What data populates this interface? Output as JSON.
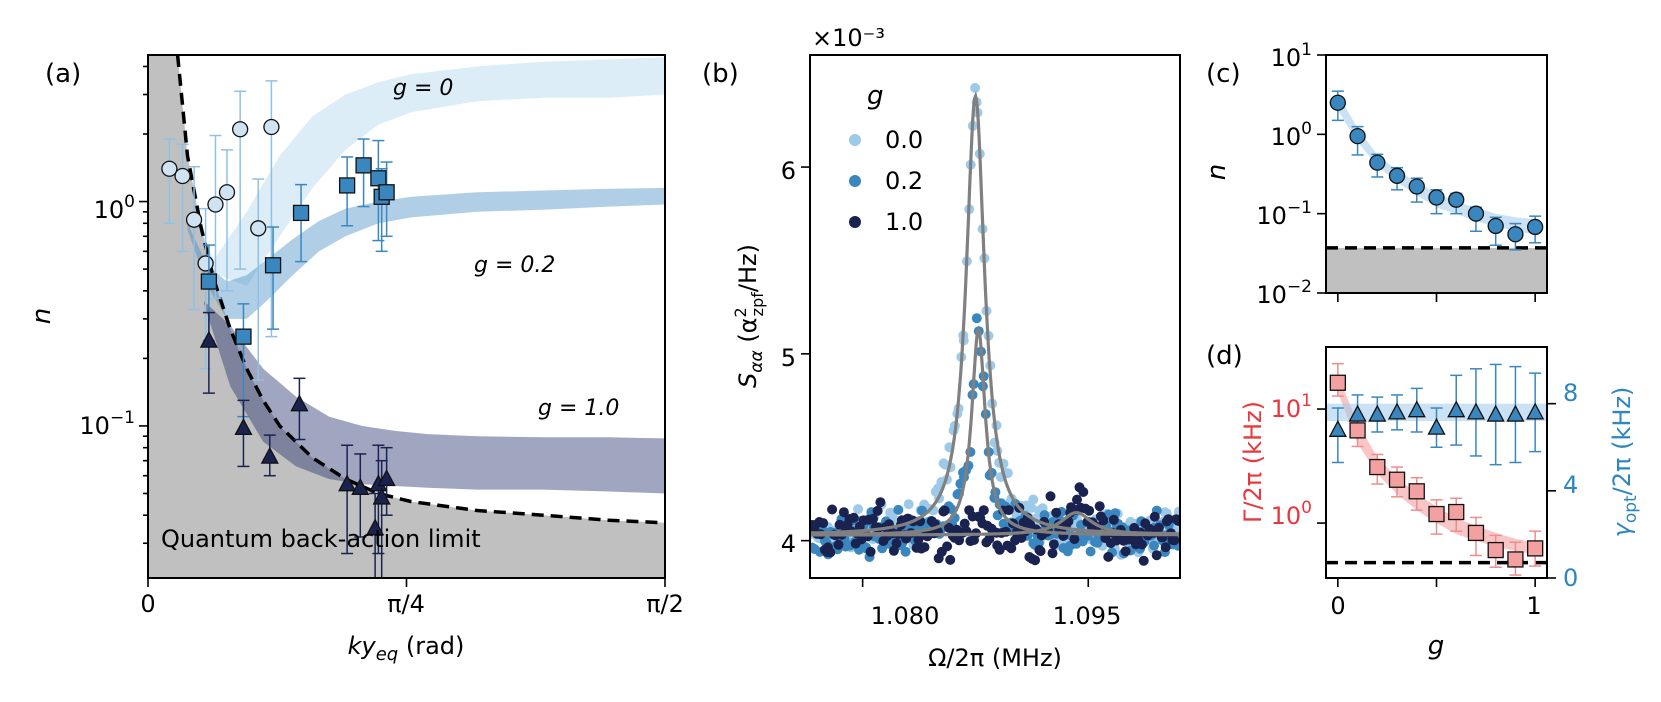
{
  "panels": {
    "a": {
      "label": "(a)",
      "xlabel": "ky_eq (rad)",
      "xlabel_main": "ky",
      "xlabel_sub": "eq",
      "xlabel_unit": " (rad)",
      "ylabel": "n",
      "xticks": [
        "0",
        "π/4",
        "π/2"
      ],
      "yticks": [
        {
          "base": "10",
          "exp": "0"
        },
        {
          "base": "10",
          "exp": "−1"
        }
      ],
      "limit_label": "Quantum back-action limit",
      "series_labels": [
        "g = 0",
        "g = 0.2",
        "g = 1.0"
      ]
    },
    "b": {
      "label": "(b)",
      "multiplier": "×10⁻³",
      "xlabel": "Ω/2π (MHz)",
      "ylabel": "S_αα (α²_zpf/Hz)",
      "xticks": [
        "1.080",
        "1.095"
      ],
      "yticks": [
        "4",
        "5",
        "6"
      ],
      "legend_title": "g",
      "legend_entries": [
        "0.0",
        "0.2",
        "1.0"
      ]
    },
    "c": {
      "label": "(c)",
      "ylabel": "n",
      "yticks": [
        {
          "base": "10",
          "exp": "1"
        },
        {
          "base": "10",
          "exp": "0"
        },
        {
          "base": "10",
          "exp": "−1"
        },
        {
          "base": "10",
          "exp": "−2"
        }
      ]
    },
    "d": {
      "label": "(d)",
      "xlabel": "g",
      "ylabel_left": "Γ/2π (kHz)",
      "ylabel_right": "γ_opt/2π (kHz)",
      "xticks": [
        "0",
        "1"
      ],
      "yticks_left": [
        {
          "base": "10",
          "exp": "1"
        },
        {
          "base": "10",
          "exp": "0"
        }
      ],
      "yticks_right": [
        "0",
        "4",
        "8"
      ]
    }
  },
  "colors": {
    "light": "#9ecae9",
    "mid": "#3a87c0",
    "dark": "#1a2350",
    "red": "#f4a0a0",
    "red_text": "#e8383d",
    "blue_text": "#2e86c1",
    "gray_fill": "#c0c0c0",
    "fit_line": "#808080"
  },
  "chart_data": [
    {
      "panel": "a",
      "type": "scatter",
      "x_scale": "linear",
      "y_scale": "log",
      "xlim": [
        0,
        1.5708
      ],
      "ylim": [
        0.021,
        4.5
      ],
      "series": [
        {
          "name": "g = 0",
          "marker": "circle",
          "x": [
            0.065,
            0.105,
            0.14,
            0.175,
            0.205,
            0.24,
            0.28,
            0.335,
            0.375
          ],
          "y": [
            1.4,
            1.3,
            0.83,
            0.53,
            0.97,
            1.1,
            2.1,
            0.76,
            2.15
          ],
          "err_low": [
            0.6,
            0.7,
            0.5,
            0.35,
            0.6,
            0.7,
            1.6,
            0.6,
            1.9
          ],
          "err_high": [
            0.5,
            0.5,
            0.6,
            0.4,
            1.0,
            0.6,
            1.0,
            0.5,
            1.3
          ]
        },
        {
          "name": "g = 0.2",
          "marker": "square",
          "x": [
            0.185,
            0.29,
            0.38,
            0.465,
            0.605,
            0.655,
            0.7,
            0.71,
            0.725
          ],
          "y": [
            0.44,
            0.25,
            0.52,
            0.89,
            1.18,
            1.45,
            1.27,
            1.05,
            1.1
          ],
          "err_low": [
            0.2,
            0.14,
            0.25,
            0.35,
            0.4,
            0.5,
            0.6,
            0.45,
            0.4
          ],
          "err_high": [
            0.2,
            0.1,
            0.25,
            0.3,
            0.4,
            0.45,
            0.6,
            0.35,
            0.4
          ]
        },
        {
          "name": "g = 1.0",
          "marker": "triangle",
          "x": [
            0.185,
            0.29,
            0.37,
            0.46,
            0.605,
            0.645,
            0.69,
            0.7,
            0.71,
            0.725
          ],
          "y": [
            0.24,
            0.098,
            0.073,
            0.125,
            0.055,
            0.053,
            0.035,
            0.055,
            0.048,
            0.058
          ],
          "err_low": [
            0.1,
            0.032,
            0.013,
            0.038,
            0.028,
            0.021,
            0.014,
            0.028,
            0.028,
            0.018
          ],
          "err_high": [
            0.08,
            0.032,
            0.018,
            0.038,
            0.027,
            0.022,
            0.015,
            0.027,
            0.022,
            0.022
          ]
        }
      ],
      "bands": [
        {
          "name": "g = 0 theory",
          "x": [
            0.13,
            0.2,
            0.3,
            0.4,
            0.5,
            0.6,
            0.7,
            0.8,
            1.0,
            1.2,
            1.4,
            1.5708
          ],
          "low": [
            0.9,
            0.48,
            0.42,
            0.7,
            1.15,
            1.7,
            2.2,
            2.5,
            2.8,
            2.9,
            2.9,
            3.0
          ],
          "high": [
            0.95,
            0.55,
            0.9,
            1.6,
            2.4,
            3.0,
            3.4,
            3.7,
            4.0,
            4.2,
            4.3,
            4.4
          ]
        },
        {
          "name": "g = 0.2 theory",
          "x": [
            0.12,
            0.18,
            0.24,
            0.3,
            0.36,
            0.44,
            0.52,
            0.6,
            0.7,
            0.8,
            1.0,
            1.2,
            1.4,
            1.5708
          ],
          "low": [
            0.75,
            0.42,
            0.3,
            0.3,
            0.36,
            0.47,
            0.6,
            0.7,
            0.8,
            0.85,
            0.9,
            0.92,
            0.95,
            0.97
          ],
          "high": [
            0.8,
            0.52,
            0.44,
            0.47,
            0.55,
            0.68,
            0.82,
            0.93,
            1.0,
            1.05,
            1.1,
            1.12,
            1.14,
            1.15
          ]
        },
        {
          "name": "g = 1.0 theory",
          "x": [
            0.17,
            0.25,
            0.35,
            0.45,
            0.55,
            0.65,
            0.75,
            0.85,
            1.0,
            1.2,
            1.4,
            1.5708
          ],
          "low": [
            0.35,
            0.15,
            0.085,
            0.066,
            0.058,
            0.055,
            0.054,
            0.053,
            0.052,
            0.052,
            0.051,
            0.05
          ],
          "high": [
            0.36,
            0.28,
            0.18,
            0.135,
            0.11,
            0.1,
            0.095,
            0.092,
            0.09,
            0.089,
            0.089,
            0.088
          ]
        }
      ],
      "limit_curve": {
        "x": [
          0.09,
          0.12,
          0.16,
          0.2,
          0.25,
          0.3,
          0.35,
          0.4,
          0.5,
          0.6,
          0.7,
          0.8,
          1.0,
          1.2,
          1.4,
          1.5708
        ],
        "y": [
          4.5,
          1.6,
          0.78,
          0.45,
          0.27,
          0.18,
          0.13,
          0.1,
          0.072,
          0.058,
          0.05,
          0.046,
          0.042,
          0.04,
          0.038,
          0.037
        ]
      }
    },
    {
      "panel": "b",
      "type": "line",
      "x_unit": "MHz",
      "xlim": [
        1.0765,
        1.1011
      ],
      "ylim": [
        3.8,
        6.6
      ],
      "y_multiplier": "1e-3",
      "fits": [
        {
          "name": "0.0",
          "peak_x": 1.0875,
          "width": 0.0015,
          "background": 4.03,
          "amplitude": 2.35
        },
        {
          "name": "0.2",
          "peak_x": 1.0877,
          "width": 0.0011,
          "background": 4.03,
          "amplitude": 1.1
        },
        {
          "name": "1.0",
          "peak_x": 1.0942,
          "width": 0.0025,
          "background": 4.03,
          "amplitude": 0.12
        }
      ],
      "noise_amplitude": [
        0.045,
        0.045,
        0.065
      ]
    },
    {
      "panel": "c",
      "type": "scatter",
      "x_scale": "linear",
      "y_scale": "log",
      "xlim": [
        -0.06,
        1.06
      ],
      "ylim": [
        0.01,
        10
      ],
      "x": [
        0.0,
        0.1,
        0.2,
        0.3,
        0.4,
        0.5,
        0.6,
        0.7,
        0.8,
        0.9,
        1.0
      ],
      "y": [
        2.5,
        0.95,
        0.44,
        0.3,
        0.22,
        0.16,
        0.15,
        0.1,
        0.07,
        0.055,
        0.068
      ],
      "err_low": [
        1.0,
        0.4,
        0.15,
        0.1,
        0.08,
        0.06,
        0.05,
        0.04,
        0.03,
        0.02,
        0.025
      ],
      "err_high": [
        1.0,
        0.3,
        0.12,
        0.08,
        0.06,
        0.04,
        0.03,
        0.02,
        0.02,
        0.02,
        0.025
      ],
      "band_x": [
        0.0,
        0.1,
        0.2,
        0.3,
        0.4,
        0.5,
        0.6,
        0.7,
        0.8,
        0.9,
        1.0
      ],
      "band_low": [
        2.0,
        0.8,
        0.4,
        0.25,
        0.17,
        0.12,
        0.1,
        0.08,
        0.07,
        0.06,
        0.055
      ],
      "band_high": [
        3.2,
        1.2,
        0.55,
        0.35,
        0.25,
        0.18,
        0.14,
        0.12,
        0.1,
        0.09,
        0.085
      ],
      "limit": 0.037
    },
    {
      "panel": "d",
      "type": "scatter",
      "x_scale": "linear",
      "xlim": [
        -0.06,
        1.06
      ],
      "left_scale": "log",
      "left_ylim": [
        0.33,
        35
      ],
      "right_ylim": [
        0,
        10.6
      ],
      "gamma": {
        "x": [
          0.0,
          0.1,
          0.2,
          0.3,
          0.4,
          0.5,
          0.6,
          0.7,
          0.8,
          0.9,
          1.0
        ],
        "y": [
          17.0,
          6.5,
          3.1,
          2.4,
          1.9,
          1.2,
          1.25,
          0.82,
          0.58,
          0.48,
          0.6
        ],
        "err_low": [
          4.0,
          1.8,
          0.9,
          0.7,
          0.6,
          0.4,
          0.4,
          0.3,
          0.17,
          0.13,
          0.18
        ],
        "err_high": [
          8.0,
          2.0,
          0.9,
          0.7,
          0.6,
          0.4,
          0.4,
          0.3,
          0.2,
          0.2,
          0.25
        ]
      },
      "gamma_band": {
        "x": [
          0.0,
          0.1,
          0.2,
          0.3,
          0.4,
          0.5,
          0.6,
          0.7,
          0.8,
          0.9,
          1.0
        ],
        "low": [
          14.0,
          5.0,
          2.7,
          1.8,
          1.3,
          1.0,
          0.8,
          0.7,
          0.62,
          0.57,
          0.53
        ],
        "high": [
          20.0,
          7.5,
          3.8,
          2.5,
          1.8,
          1.4,
          1.1,
          0.95,
          0.82,
          0.73,
          0.67
        ]
      },
      "gamma_limit": 0.45,
      "gamma_opt": {
        "x": [
          0.0,
          0.1,
          0.2,
          0.3,
          0.4,
          0.5,
          0.6,
          0.7,
          0.8,
          0.9,
          1.0
        ],
        "y": [
          6.8,
          7.5,
          7.5,
          7.6,
          7.7,
          6.9,
          7.7,
          7.6,
          7.5,
          7.5,
          7.6
        ],
        "err_low": [
          1.5,
          0.9,
          0.8,
          0.8,
          1.0,
          0.9,
          1.6,
          2.0,
          2.3,
          2.2,
          1.8
        ],
        "err_high": [
          1.0,
          0.9,
          0.8,
          0.8,
          1.0,
          0.9,
          1.6,
          2.0,
          2.3,
          2.2,
          1.8
        ]
      },
      "gamma_opt_band": [
        7.2,
        8.0
      ]
    }
  ]
}
